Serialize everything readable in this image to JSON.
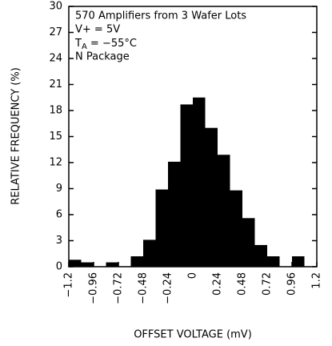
{
  "chart_data": {
    "type": "histogram",
    "annotations": [
      "570 Amplifiers from 3 Wafer Lots",
      "V+ = 5V",
      [
        "T",
        "A",
        " = −55°C"
      ],
      "N Package"
    ],
    "xlabel": "OFFSET VOLTAGE (mV)",
    "ylabel": "RELATIVE FREQUENCY (%)",
    "bins": [
      -1.2,
      -1.08,
      -0.96,
      -0.84,
      -0.72,
      -0.6,
      -0.48,
      -0.36,
      -0.24,
      -0.12,
      0,
      0.12,
      0.24,
      0.36,
      0.48,
      0.6,
      0.72,
      0.84,
      0.96,
      1.08,
      1.2
    ],
    "values": [
      0.8,
      0.5,
      0,
      0.5,
      0,
      1.2,
      3.1,
      8.9,
      12.1,
      18.7,
      19.5,
      16,
      12.9,
      8.8,
      5.6,
      2.5,
      1.2,
      0,
      1.2,
      0
    ],
    "color": "#000000",
    "xlim": [
      -1.2,
      1.2
    ],
    "xticks": [
      {
        "value": -1.2,
        "label": "−1.2"
      },
      {
        "value": -0.96,
        "label": "−0.96"
      },
      {
        "value": -0.72,
        "label": "−0.72"
      },
      {
        "value": -0.48,
        "label": "−0.48"
      },
      {
        "value": -0.24,
        "label": "−0.24"
      },
      0,
      0.24,
      0.48,
      0.72,
      0.96,
      1.2
    ],
    "ylim": [
      0,
      30
    ],
    "yticks": [
      0,
      3,
      6,
      9,
      12,
      15,
      18,
      21,
      24,
      27,
      30
    ],
    "grid": false
  }
}
